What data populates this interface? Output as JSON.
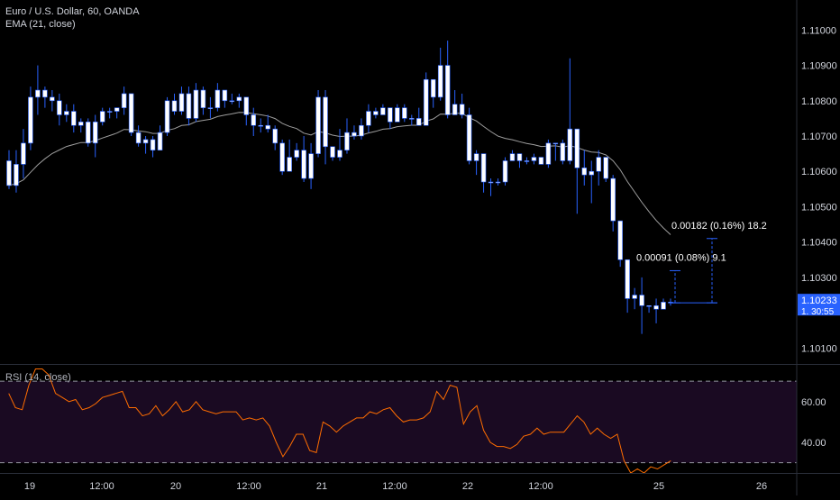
{
  "header": {
    "symbol_title": "Euro / U.S. Dollar, 60, OANDA",
    "ema_label": "EMA (21, close)",
    "rsi_label": "RSI (14, close)"
  },
  "colors": {
    "background": "#000000",
    "candle_up": "#ffffff",
    "candle_down": "#ffffff",
    "wick": "#2962ff",
    "ema_line": "#9e9e9e",
    "rsi_line": "#ff6d00",
    "rsi_band_fill": "#1a0a22",
    "rsi_band_line": "#9598a1",
    "measure_line": "#2962ff",
    "price_badge": "#2962ff"
  },
  "chart_data": [
    {
      "type": "candlestick",
      "title": "Euro / U.S. Dollar, 60, OANDA",
      "indicator": "EMA (21, close)",
      "y_axis_side": "right",
      "ylim": [
        1.10055,
        1.11085
      ],
      "y_ticks": [
        "1.11000",
        "1.10900",
        "1.10800",
        "1.10700",
        "1.10600",
        "1.10500",
        "1.10400",
        "1.10300",
        "1.10100"
      ],
      "last_price": "1.10233",
      "countdown": "1. 30:55",
      "x_ticks": [
        "19",
        "12:00",
        "20",
        "12:00",
        "21",
        "12:00",
        "22",
        "12:00",
        "25",
        "26"
      ],
      "measurements": [
        {
          "label": "0.00091 (0.08%) 9.1",
          "from": 1.10228,
          "to": 1.10319
        },
        {
          "label": "0.00182 (0.16%) 18.2",
          "from": 1.10228,
          "to": 1.1041
        }
      ],
      "candles": [
        [
          1.1063,
          1.1056,
          1.1066,
          1.1055
        ],
        [
          1.1056,
          1.1062,
          1.1066,
          1.1054
        ],
        [
          1.1062,
          1.1068,
          1.1072,
          1.1058
        ],
        [
          1.1068,
          1.1081,
          1.1084,
          1.1066
        ],
        [
          1.1081,
          1.1083,
          1.109,
          1.1076
        ],
        [
          1.1083,
          1.1081,
          1.1084,
          1.1078
        ],
        [
          1.1081,
          1.108,
          1.1083,
          1.1077
        ],
        [
          1.108,
          1.1076,
          1.1082,
          1.1073
        ],
        [
          1.1076,
          1.1077,
          1.1079,
          1.1074
        ],
        [
          1.1077,
          1.1073,
          1.1079,
          1.1071
        ],
        [
          1.1073,
          1.1074,
          1.1075,
          1.1071
        ],
        [
          1.1074,
          1.1068,
          1.1075,
          1.1067
        ],
        [
          1.1068,
          1.1074,
          1.1076,
          1.1064
        ],
        [
          1.1074,
          1.1077,
          1.1078,
          1.1073
        ],
        [
          1.1077,
          1.1077,
          1.1078,
          1.1075
        ],
        [
          1.1077,
          1.1078,
          1.1078,
          1.1075
        ],
        [
          1.1078,
          1.1082,
          1.1084,
          1.1076
        ],
        [
          1.1082,
          1.1071,
          1.1082,
          1.107
        ],
        [
          1.1071,
          1.1068,
          1.1073,
          1.1067
        ],
        [
          1.1068,
          1.1069,
          1.107,
          1.1065
        ],
        [
          1.1069,
          1.1066,
          1.107,
          1.1064
        ],
        [
          1.1066,
          1.1071,
          1.1073,
          1.1066
        ],
        [
          1.1071,
          1.108,
          1.1081,
          1.107
        ],
        [
          1.108,
          1.1077,
          1.1082,
          1.1076
        ],
        [
          1.1077,
          1.1082,
          1.1084,
          1.1076
        ],
        [
          1.1082,
          1.1075,
          1.1084,
          1.1073
        ],
        [
          1.1075,
          1.1083,
          1.1085,
          1.1074
        ],
        [
          1.1083,
          1.1078,
          1.1084,
          1.1076
        ],
        [
          1.1078,
          1.1078,
          1.1081,
          1.1075
        ],
        [
          1.1078,
          1.1083,
          1.1085,
          1.1077
        ],
        [
          1.1083,
          1.108,
          1.1083,
          1.1078
        ],
        [
          1.108,
          1.108,
          1.1082,
          1.1079
        ],
        [
          1.108,
          1.1081,
          1.1082,
          1.1078
        ],
        [
          1.1081,
          1.1076,
          1.108,
          1.1073
        ],
        [
          1.1076,
          1.1073,
          1.1078,
          1.107
        ],
        [
          1.1073,
          1.1073,
          1.1075,
          1.1071
        ],
        [
          1.1073,
          1.1072,
          1.1076,
          1.1071
        ],
        [
          1.1072,
          1.1068,
          1.1073,
          1.1066
        ],
        [
          1.1068,
          1.106,
          1.1069,
          1.1059
        ],
        [
          1.106,
          1.1064,
          1.1069,
          1.1061
        ],
        [
          1.1064,
          1.1066,
          1.1068,
          1.1063
        ],
        [
          1.1066,
          1.1058,
          1.107,
          1.1057
        ],
        [
          1.1058,
          1.1065,
          1.1068,
          1.1055
        ],
        [
          1.1065,
          1.1081,
          1.1083,
          1.1064
        ],
        [
          1.1081,
          1.1067,
          1.1083,
          1.1062
        ],
        [
          1.1067,
          1.1064,
          1.1067,
          1.1063
        ],
        [
          1.1064,
          1.1066,
          1.1072,
          1.1063
        ],
        [
          1.1066,
          1.1071,
          1.1075,
          1.1065
        ],
        [
          1.1071,
          1.107,
          1.1073,
          1.1069
        ],
        [
          1.107,
          1.1073,
          1.1075,
          1.1069
        ],
        [
          1.1073,
          1.1077,
          1.1079,
          1.1071
        ],
        [
          1.1077,
          1.1076,
          1.1078,
          1.1075
        ],
        [
          1.1076,
          1.1078,
          1.1079,
          1.1076
        ],
        [
          1.1078,
          1.1074,
          1.1078,
          1.1072
        ],
        [
          1.1074,
          1.1078,
          1.1079,
          1.1074
        ],
        [
          1.1078,
          1.1075,
          1.1079,
          1.1074
        ],
        [
          1.1075,
          1.1075,
          1.1076,
          1.1073
        ],
        [
          1.1075,
          1.1073,
          1.1078,
          1.1073
        ],
        [
          1.1073,
          1.1086,
          1.1088,
          1.1073
        ],
        [
          1.1086,
          1.1081,
          1.1086,
          1.1078
        ],
        [
          1.1081,
          1.109,
          1.1095,
          1.108
        ],
        [
          1.109,
          1.1076,
          1.1097,
          1.1075
        ],
        [
          1.1076,
          1.1079,
          1.1083,
          1.1076
        ],
        [
          1.1079,
          1.1076,
          1.1082,
          1.1075
        ],
        [
          1.1076,
          1.1063,
          1.1078,
          1.1062
        ],
        [
          1.1063,
          1.1065,
          1.1066,
          1.1059
        ],
        [
          1.1065,
          1.1057,
          1.106,
          1.1054
        ],
        [
          1.1057,
          1.1057,
          1.1058,
          1.1053
        ],
        [
          1.1057,
          1.1057,
          1.1058,
          1.1056
        ],
        [
          1.1057,
          1.1063,
          1.1064,
          1.1056
        ],
        [
          1.1063,
          1.1065,
          1.1066,
          1.1063
        ],
        [
          1.1065,
          1.1063,
          1.1065,
          1.1061
        ],
        [
          1.1063,
          1.1063,
          1.1064,
          1.1062
        ],
        [
          1.1063,
          1.1064,
          1.1065,
          1.1062
        ],
        [
          1.1064,
          1.1062,
          1.1064,
          1.1062
        ],
        [
          1.1062,
          1.1068,
          1.1069,
          1.1061
        ],
        [
          1.1068,
          1.1068,
          1.1068,
          1.1063
        ],
        [
          1.1068,
          1.1063,
          1.1069,
          1.1062
        ],
        [
          1.1063,
          1.1072,
          1.1092,
          1.1062
        ],
        [
          1.1072,
          1.1061,
          1.1069,
          1.1048
        ],
        [
          1.1061,
          1.1059,
          1.1066,
          1.1056
        ],
        [
          1.1059,
          1.106,
          1.1063,
          1.1051
        ],
        [
          1.106,
          1.1064,
          1.1066,
          1.1056
        ],
        [
          1.1064,
          1.1058,
          1.1064,
          1.1057
        ],
        [
          1.1058,
          1.1046,
          1.1059,
          1.1043
        ],
        [
          1.1046,
          1.1035,
          1.1046,
          1.1033
        ],
        [
          1.1035,
          1.1024,
          1.1035,
          1.102
        ],
        [
          1.1024,
          1.1025,
          1.1027,
          1.1021
        ],
        [
          1.1025,
          1.1022,
          1.103,
          1.1014
        ],
        [
          1.1022,
          1.1022,
          1.1022,
          1.102
        ],
        [
          1.1022,
          1.1021,
          1.1024,
          1.1017
        ],
        [
          1.1021,
          1.1023,
          1.1024,
          1.1021
        ],
        [
          1.1023,
          1.1023,
          1.1024,
          1.1022
        ]
      ]
    },
    {
      "type": "line",
      "title": "RSI (14, close)",
      "ylim": [
        25,
        78
      ],
      "y_ticks": [
        "60.00",
        "40.00"
      ],
      "bands": [
        70,
        30
      ],
      "values": [
        64,
        57,
        56,
        68,
        76,
        76,
        73,
        64,
        62,
        60,
        61,
        56,
        57,
        59,
        62,
        63,
        64,
        65,
        57,
        57,
        53,
        54,
        58,
        53,
        56,
        60,
        55,
        56,
        60,
        56,
        55,
        54,
        55,
        55,
        55,
        51,
        52,
        51,
        52,
        48,
        40,
        33,
        38,
        44,
        44,
        36,
        35,
        50,
        48,
        45,
        48,
        50,
        52,
        52,
        55,
        54,
        56,
        57,
        53,
        50,
        51,
        51,
        52,
        55,
        65,
        61,
        68,
        67,
        49,
        55,
        58,
        46,
        40,
        38,
        38,
        37,
        39,
        43,
        44,
        47,
        44,
        45,
        45,
        45,
        49,
        53,
        50,
        44,
        47,
        44,
        42,
        44,
        31,
        25,
        27,
        25,
        28,
        27,
        29,
        31
      ]
    }
  ],
  "price_axis": {
    "last_price": "1.10233",
    "countdown": "1. 30:55"
  },
  "rsi_axis": {
    "labels": [
      "60.00",
      "40.00"
    ]
  },
  "time_axis": {
    "labels": [
      "19",
      "12:00",
      "20",
      "12:00",
      "21",
      "12:00",
      "22",
      "12:00",
      "25",
      "26"
    ]
  }
}
